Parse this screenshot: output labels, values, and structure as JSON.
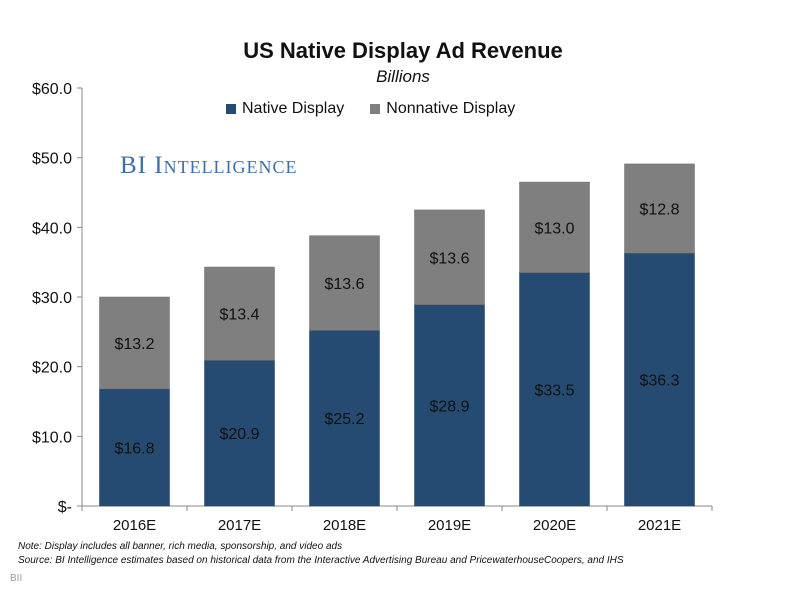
{
  "header": {
    "title": "US Native Display Ad Revenue",
    "subtitle": "Billions"
  },
  "legend": {
    "native_label": "Native Display",
    "nonnative_label": "Nonnative Display"
  },
  "watermark": "BI Intelligence",
  "notes": {
    "note": "Note: Display includes all banner, rich media, sponsorship, and video ads",
    "source": "Source: BI Intelligence estimates based on historical data from the Interactive Advertising Bureau and PricewaterhouseCoopers, and IHS"
  },
  "footer": "BII",
  "colors": {
    "native": "#264b72",
    "nonnative": "#7f7f7f"
  },
  "chart_data": {
    "type": "bar",
    "stacked": true,
    "title": "US Native Display Ad Revenue",
    "subtitle": "Billions",
    "categories": [
      "2016E",
      "2017E",
      "2018E",
      "2019E",
      "2020E",
      "2021E"
    ],
    "series": [
      {
        "name": "Native Display",
        "values": [
          16.8,
          20.9,
          25.2,
          28.9,
          33.5,
          36.3
        ],
        "labels": [
          "$16.8",
          "$20.9",
          "$25.2",
          "$28.9",
          "$33.5",
          "$36.3"
        ]
      },
      {
        "name": "Nonnative Display",
        "values": [
          13.2,
          13.4,
          13.6,
          13.6,
          13.0,
          12.8
        ],
        "labels": [
          "$13.2",
          "$13.4",
          "$13.6",
          "$13.6",
          "$13.0",
          "$12.8"
        ]
      }
    ],
    "ylim": [
      0,
      60
    ],
    "yticks": [
      0,
      10,
      20,
      30,
      40,
      50,
      60
    ],
    "ytick_labels": [
      "$-",
      "$10.0",
      "$20.0",
      "$30.0",
      "$40.0",
      "$50.0",
      "$60.0"
    ],
    "legend_position": "top",
    "grid": false
  }
}
